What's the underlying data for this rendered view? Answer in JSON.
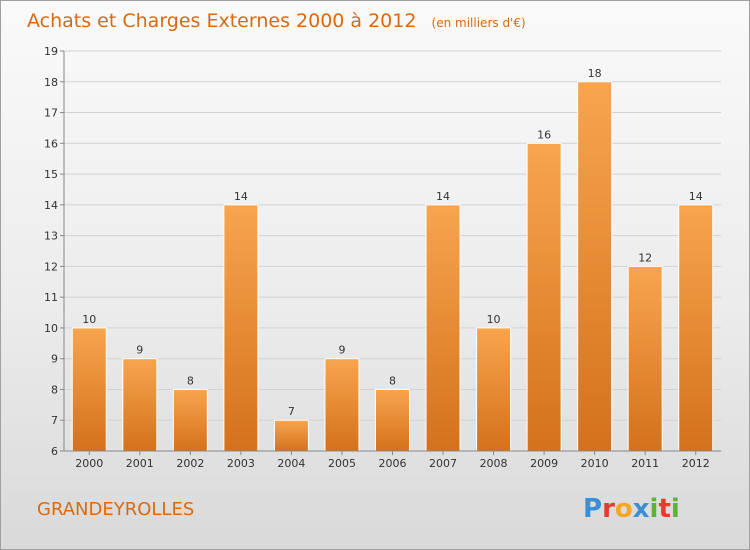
{
  "chart_data": {
    "type": "bar",
    "title": "Achats et Charges Externes 2000 à 2012",
    "unit_note": "(en milliers d'€)",
    "categories": [
      "2000",
      "2001",
      "2002",
      "2003",
      "2004",
      "2005",
      "2006",
      "2007",
      "2008",
      "2009",
      "2010",
      "2011",
      "2012"
    ],
    "values": [
      10,
      9,
      8,
      14,
      7,
      9,
      8,
      14,
      10,
      16,
      18,
      12,
      14
    ],
    "ylim": [
      6,
      19
    ],
    "yticks": [
      6,
      7,
      8,
      9,
      10,
      11,
      12,
      13,
      14,
      15,
      16,
      17,
      18,
      19
    ],
    "grid": true,
    "bar_color": "#f0922e"
  },
  "footer": {
    "place": "GRANDEYROLLES",
    "logo": "Proxiti"
  }
}
